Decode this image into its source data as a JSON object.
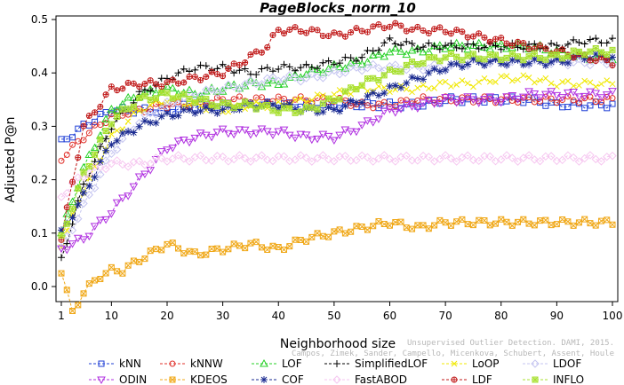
{
  "chart_data": {
    "type": "line",
    "title": "PageBlocks_norm_10",
    "xlabel": "Neighborhood size",
    "ylabel": "Adjusted P@n",
    "xlim": [
      1,
      100
    ],
    "ylim": [
      -0.05,
      0.5
    ],
    "x_ticks": [
      1,
      10,
      20,
      30,
      40,
      50,
      60,
      70,
      80,
      90,
      100
    ],
    "y_ticks": [
      0.0,
      0.1,
      0.2,
      0.3,
      0.4,
      0.5
    ],
    "x_tick_labels": [
      "1",
      "10",
      "20",
      "30",
      "40",
      "50",
      "60",
      "70",
      "80",
      "90",
      "100"
    ],
    "y_tick_labels": [
      "0.0",
      "0.1",
      "0.2",
      "0.3",
      "0.4",
      "0.5"
    ],
    "legend_position": "bottom",
    "watermark": [
      "Unsupervised Outlier Detection. DAMI, 2015.",
      "Campos, Zimek, Sander, Campello, Micenkova, Schubert, Assent, Houle"
    ],
    "series": [
      {
        "name": "kNN",
        "color": "#1f3fd6",
        "marker": "square",
        "x": [
          1,
          5,
          10,
          15,
          20,
          25,
          30,
          35,
          40,
          45,
          50,
          55,
          60,
          65,
          70,
          75,
          80,
          85,
          90,
          95,
          100
        ],
        "y": [
          0.27,
          0.3,
          0.33,
          0.33,
          0.33,
          0.34,
          0.34,
          0.34,
          0.34,
          0.34,
          0.34,
          0.34,
          0.34,
          0.34,
          0.35,
          0.35,
          0.35,
          0.35,
          0.34,
          0.34,
          0.34
        ]
      },
      {
        "name": "kNNW",
        "color": "#e0302a",
        "marker": "circle",
        "x": [
          1,
          5,
          10,
          15,
          20,
          25,
          30,
          35,
          40,
          45,
          50,
          55,
          60,
          65,
          70,
          75,
          80,
          85,
          90,
          95,
          100
        ],
        "y": [
          0.24,
          0.28,
          0.32,
          0.33,
          0.34,
          0.34,
          0.35,
          0.35,
          0.35,
          0.35,
          0.35,
          0.34,
          0.34,
          0.35,
          0.35,
          0.35,
          0.35,
          0.35,
          0.35,
          0.35,
          0.35
        ]
      },
      {
        "name": "LOF",
        "color": "#26d026",
        "marker": "triangle",
        "x": [
          1,
          5,
          10,
          15,
          20,
          25,
          30,
          35,
          40,
          45,
          50,
          55,
          60,
          65,
          70,
          75,
          80,
          85,
          90,
          95,
          100
        ],
        "y": [
          0.1,
          0.22,
          0.33,
          0.36,
          0.37,
          0.36,
          0.37,
          0.38,
          0.38,
          0.4,
          0.41,
          0.42,
          0.44,
          0.44,
          0.45,
          0.45,
          0.45,
          0.45,
          0.44,
          0.43,
          0.43
        ]
      },
      {
        "name": "SimplifiedLOF",
        "color": "#000000",
        "marker": "plus",
        "x": [
          1,
          5,
          10,
          15,
          20,
          25,
          30,
          35,
          40,
          45,
          50,
          55,
          60,
          65,
          70,
          75,
          80,
          85,
          90,
          95,
          100
        ],
        "y": [
          0.05,
          0.19,
          0.3,
          0.36,
          0.39,
          0.41,
          0.41,
          0.4,
          0.41,
          0.41,
          0.42,
          0.43,
          0.46,
          0.45,
          0.45,
          0.45,
          0.45,
          0.45,
          0.45,
          0.46,
          0.46
        ]
      },
      {
        "name": "LoOP",
        "color": "#f0e800",
        "marker": "x",
        "x": [
          1,
          5,
          10,
          15,
          20,
          25,
          30,
          35,
          40,
          45,
          50,
          55,
          60,
          65,
          70,
          75,
          80,
          85,
          90,
          95,
          100
        ],
        "y": [
          0.08,
          0.18,
          0.28,
          0.33,
          0.35,
          0.34,
          0.33,
          0.34,
          0.34,
          0.35,
          0.36,
          0.37,
          0.37,
          0.37,
          0.38,
          0.38,
          0.39,
          0.39,
          0.38,
          0.38,
          0.38
        ]
      },
      {
        "name": "LDOF",
        "color": "#c4c4f0",
        "marker": "diamond",
        "x": [
          1,
          5,
          10,
          15,
          20,
          25,
          30,
          35,
          40,
          45,
          50,
          55,
          60,
          65,
          70,
          75,
          80,
          85,
          90,
          95,
          100
        ],
        "y": [
          0.07,
          0.15,
          0.25,
          0.31,
          0.34,
          0.36,
          0.37,
          0.38,
          0.39,
          0.39,
          0.4,
          0.41,
          0.41,
          0.41,
          0.41,
          0.42,
          0.42,
          0.42,
          0.42,
          0.42,
          0.42
        ]
      },
      {
        "name": "ODIN",
        "color": "#b030e0",
        "marker": "triangle-down",
        "x": [
          1,
          5,
          10,
          15,
          20,
          25,
          30,
          35,
          40,
          45,
          50,
          55,
          60,
          65,
          70,
          75,
          80,
          85,
          90,
          95,
          100
        ],
        "y": [
          0.07,
          0.09,
          0.14,
          0.2,
          0.26,
          0.28,
          0.29,
          0.29,
          0.29,
          0.28,
          0.28,
          0.3,
          0.33,
          0.34,
          0.35,
          0.35,
          0.35,
          0.36,
          0.36,
          0.36,
          0.36
        ]
      },
      {
        "name": "KDEOS",
        "color": "#f0a818",
        "marker": "square-x",
        "x": [
          1,
          3,
          5,
          8,
          10,
          12,
          15,
          20,
          25,
          30,
          35,
          40,
          45,
          50,
          55,
          60,
          65,
          70,
          75,
          80,
          85,
          90,
          95,
          100
        ],
        "y": [
          0.03,
          -0.05,
          -0.01,
          0.02,
          0.03,
          0.03,
          0.05,
          0.08,
          0.06,
          0.07,
          0.08,
          0.07,
          0.09,
          0.1,
          0.11,
          0.12,
          0.11,
          0.12,
          0.12,
          0.12,
          0.12,
          0.12,
          0.12,
          0.12
        ]
      },
      {
        "name": "COF",
        "color": "#1a2a90",
        "marker": "star",
        "x": [
          1,
          5,
          10,
          15,
          20,
          25,
          30,
          35,
          40,
          45,
          50,
          55,
          60,
          65,
          70,
          75,
          80,
          85,
          90,
          95,
          100
        ],
        "y": [
          0.1,
          0.17,
          0.27,
          0.3,
          0.32,
          0.33,
          0.33,
          0.34,
          0.34,
          0.33,
          0.33,
          0.35,
          0.37,
          0.39,
          0.41,
          0.42,
          0.42,
          0.42,
          0.42,
          0.43,
          0.43
        ]
      },
      {
        "name": "FastABOD",
        "color": "#f6c6f0",
        "marker": "diamond",
        "x": [
          1,
          5,
          10,
          15,
          20,
          25,
          30,
          35,
          40,
          45,
          50,
          55,
          60,
          65,
          70,
          75,
          80,
          85,
          90,
          95,
          100
        ],
        "y": [
          0.17,
          0.21,
          0.23,
          0.23,
          0.24,
          0.24,
          0.24,
          0.24,
          0.24,
          0.24,
          0.24,
          0.24,
          0.24,
          0.24,
          0.24,
          0.24,
          0.24,
          0.24,
          0.24,
          0.24,
          0.24
        ]
      },
      {
        "name": "LDF",
        "color": "#c01818",
        "marker": "circle-plus",
        "x": [
          1,
          5,
          10,
          15,
          20,
          25,
          30,
          35,
          38,
          40,
          45,
          50,
          55,
          60,
          65,
          70,
          75,
          80,
          85,
          90,
          95,
          100
        ],
        "y": [
          0.09,
          0.3,
          0.37,
          0.38,
          0.38,
          0.39,
          0.4,
          0.43,
          0.45,
          0.48,
          0.48,
          0.47,
          0.48,
          0.49,
          0.48,
          0.48,
          0.47,
          0.46,
          0.45,
          0.44,
          0.43,
          0.42
        ]
      },
      {
        "name": "INFLO",
        "color": "#a8e030",
        "marker": "square-star",
        "x": [
          1,
          5,
          10,
          15,
          20,
          25,
          30,
          35,
          40,
          45,
          50,
          55,
          60,
          65,
          70,
          75,
          80,
          85,
          90,
          95,
          100
        ],
        "y": [
          0.09,
          0.21,
          0.31,
          0.35,
          0.36,
          0.35,
          0.34,
          0.34,
          0.33,
          0.33,
          0.35,
          0.38,
          0.4,
          0.42,
          0.43,
          0.43,
          0.43,
          0.43,
          0.43,
          0.44,
          0.44
        ]
      }
    ],
    "legend_order": [
      "kNN",
      "kNNW",
      "LOF",
      "SimplifiedLOF",
      "LoOP",
      "LDOF",
      "ODIN",
      "KDEOS",
      "COF",
      "FastABOD",
      "LDF",
      "INFLO"
    ]
  }
}
